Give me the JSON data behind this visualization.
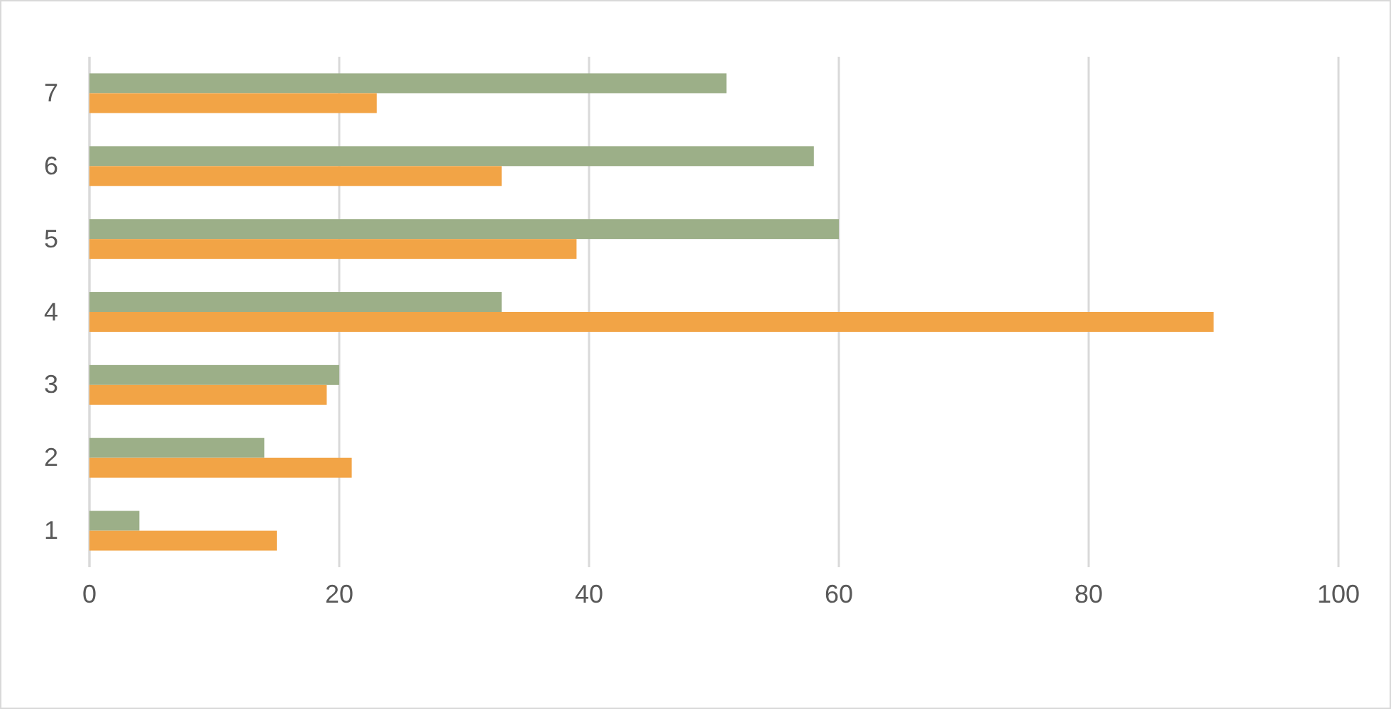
{
  "chart_data": {
    "type": "bar",
    "orientation": "horizontal",
    "categories": [
      "7",
      "6",
      "5",
      "4",
      "3",
      "2",
      "1"
    ],
    "series": [
      {
        "color": "#9caf88",
        "values": [
          51,
          58,
          60,
          33,
          20,
          14,
          4
        ]
      },
      {
        "color": "#f2a446",
        "values": [
          23,
          33,
          39,
          90,
          19,
          21,
          15
        ]
      }
    ],
    "xlim": [
      0,
      100
    ],
    "xticks": [
      0,
      20,
      40,
      60,
      80,
      100
    ],
    "grid": "x"
  }
}
